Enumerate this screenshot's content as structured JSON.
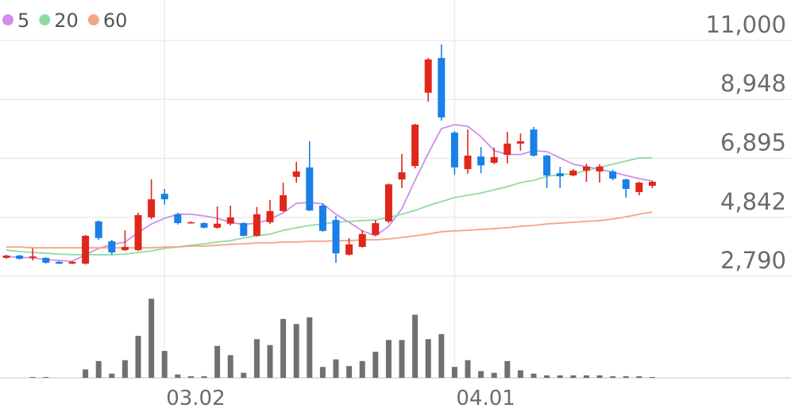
{
  "chart_data": {
    "type": "candlestick",
    "categories": [
      null,
      null,
      null,
      null,
      null,
      null,
      null,
      null,
      null,
      null,
      null,
      null,
      "03.02",
      null,
      null,
      null,
      null,
      null,
      null,
      null,
      null,
      null,
      null,
      null,
      null,
      null,
      null,
      null,
      null,
      null,
      null,
      null,
      null,
      null,
      "04.01",
      null,
      null,
      null,
      null,
      null,
      null,
      null,
      null,
      null,
      null,
      null,
      null,
      null,
      null,
      null
    ],
    "open": [
      3430,
      3510,
      3430,
      3430,
      3290,
      3230,
      3230,
      4700,
      4010,
      3700,
      3700,
      4840,
      5660,
      4950,
      4640,
      4640,
      4480,
      4620,
      4640,
      4200,
      4670,
      5060,
      6250,
      6580,
      5250,
      4750,
      3540,
      3810,
      4230,
      4700,
      6160,
      6630,
      9180,
      10390,
      7790,
      6520,
      6960,
      6740,
      7020,
      7410,
      7900,
      6990,
      6380,
      6300,
      6470,
      6440,
      6440,
      6160,
      5720,
      5940
    ],
    "high": [
      3540,
      3540,
      3760,
      3450,
      3320,
      3320,
      4230,
      4730,
      4060,
      4390,
      5000,
      6160,
      5830,
      5000,
      4700,
      4670,
      5220,
      5250,
      4670,
      5200,
      5440,
      6050,
      6770,
      7490,
      5330,
      4890,
      4120,
      4390,
      4750,
      6020,
      7050,
      8100,
      10390,
      10860,
      7850,
      7900,
      7290,
      7270,
      7820,
      7760,
      7990,
      7020,
      6600,
      6520,
      6710,
      6690,
      6500,
      6190,
      6080,
      6110
    ],
    "low": [
      3400,
      3370,
      3340,
      3230,
      3210,
      3210,
      3200,
      4060,
      3540,
      3670,
      3670,
      4780,
      5280,
      4590,
      4620,
      4460,
      4450,
      4560,
      4180,
      4170,
      4610,
      5030,
      6050,
      5060,
      4340,
      3260,
      3510,
      3790,
      4200,
      4640,
      5860,
      6550,
      8870,
      8210,
      6330,
      6360,
      6380,
      6690,
      6720,
      7160,
      6960,
      5860,
      5860,
      6270,
      6080,
      6050,
      6130,
      5530,
      5610,
      5860
    ],
    "close": [
      3510,
      3400,
      3480,
      3260,
      3230,
      3290,
      4200,
      4120,
      3620,
      3810,
      4920,
      5470,
      5470,
      4640,
      4670,
      4480,
      4620,
      4840,
      4200,
      4950,
      5060,
      5610,
      6440,
      5080,
      4370,
      3590,
      3900,
      4260,
      4640,
      5990,
      6410,
      8070,
      10340,
      8320,
      6580,
      6990,
      6650,
      6940,
      7410,
      7490,
      6990,
      6300,
      6270,
      6470,
      6610,
      6610,
      6190,
      5830,
      6050,
      6080
    ],
    "up_color": "#e0271b",
    "down_color": "#1a7fe8",
    "series": [
      {
        "name": "5",
        "color": "#d08ee8",
        "values": [
          3480,
          3450,
          3430,
          3370,
          3340,
          3310,
          3540,
          3760,
          3900,
          3980,
          4310,
          4610,
          4810,
          4950,
          4950,
          4890,
          4810,
          4670,
          4590,
          4640,
          4780,
          5000,
          5330,
          5360,
          5310,
          4950,
          4670,
          4370,
          4200,
          4530,
          5140,
          6130,
          7070,
          7930,
          8070,
          8010,
          7650,
          7170,
          7030,
          7030,
          7160,
          7130,
          6910,
          6690,
          6600,
          6520,
          6410,
          6300,
          6190,
          6110
        ]
      },
      {
        "name": "20",
        "color": "#8fdca0",
        "values": [
          3700,
          3650,
          3620,
          3590,
          3560,
          3540,
          3540,
          3540,
          3540,
          3560,
          3620,
          3670,
          3760,
          3810,
          3870,
          3920,
          3980,
          4030,
          4120,
          4200,
          4260,
          4390,
          4480,
          4560,
          4610,
          4670,
          4700,
          4730,
          4750,
          4840,
          4950,
          5080,
          5250,
          5390,
          5530,
          5610,
          5690,
          5800,
          5910,
          6050,
          6130,
          6270,
          6330,
          6360,
          6470,
          6580,
          6690,
          6800,
          6910,
          6910
        ]
      },
      {
        "name": "60",
        "color": "#f4a582",
        "values": [
          3810,
          3810,
          3780,
          3780,
          3780,
          3780,
          3780,
          3780,
          3780,
          3780,
          3780,
          3780,
          3810,
          3810,
          3840,
          3840,
          3870,
          3900,
          3920,
          3950,
          3950,
          3980,
          3980,
          4010,
          4010,
          4030,
          4030,
          4060,
          4060,
          4090,
          4140,
          4200,
          4260,
          4340,
          4370,
          4390,
          4420,
          4450,
          4480,
          4530,
          4560,
          4610,
          4640,
          4670,
          4700,
          4730,
          4780,
          4860,
          4950,
          5030
        ]
      }
    ],
    "volume": [
      0,
      0,
      1,
      1,
      0,
      0,
      10,
      20,
      5,
      21,
      50,
      94,
      32,
      4,
      2,
      2,
      38,
      27,
      6,
      46,
      39,
      70,
      64,
      72,
      13,
      22,
      14,
      20,
      31,
      45,
      45,
      75,
      46,
      52,
      13,
      21,
      8,
      6,
      20,
      9,
      5,
      3,
      3,
      3,
      3,
      3,
      2,
      2,
      2,
      1
    ],
    "volume_color": "#707070",
    "volume_ylim": [
      0,
      100
    ],
    "ylim": [
      2790,
      11000
    ],
    "yticks": [
      {
        "value": 11000,
        "label": "11,000"
      },
      {
        "value": 8948,
        "label": "8,948"
      },
      {
        "value": 6895,
        "label": "6,895"
      },
      {
        "value": 4842,
        "label": "4,842"
      },
      {
        "value": 2790,
        "label": "2,790"
      }
    ],
    "grid": true
  }
}
